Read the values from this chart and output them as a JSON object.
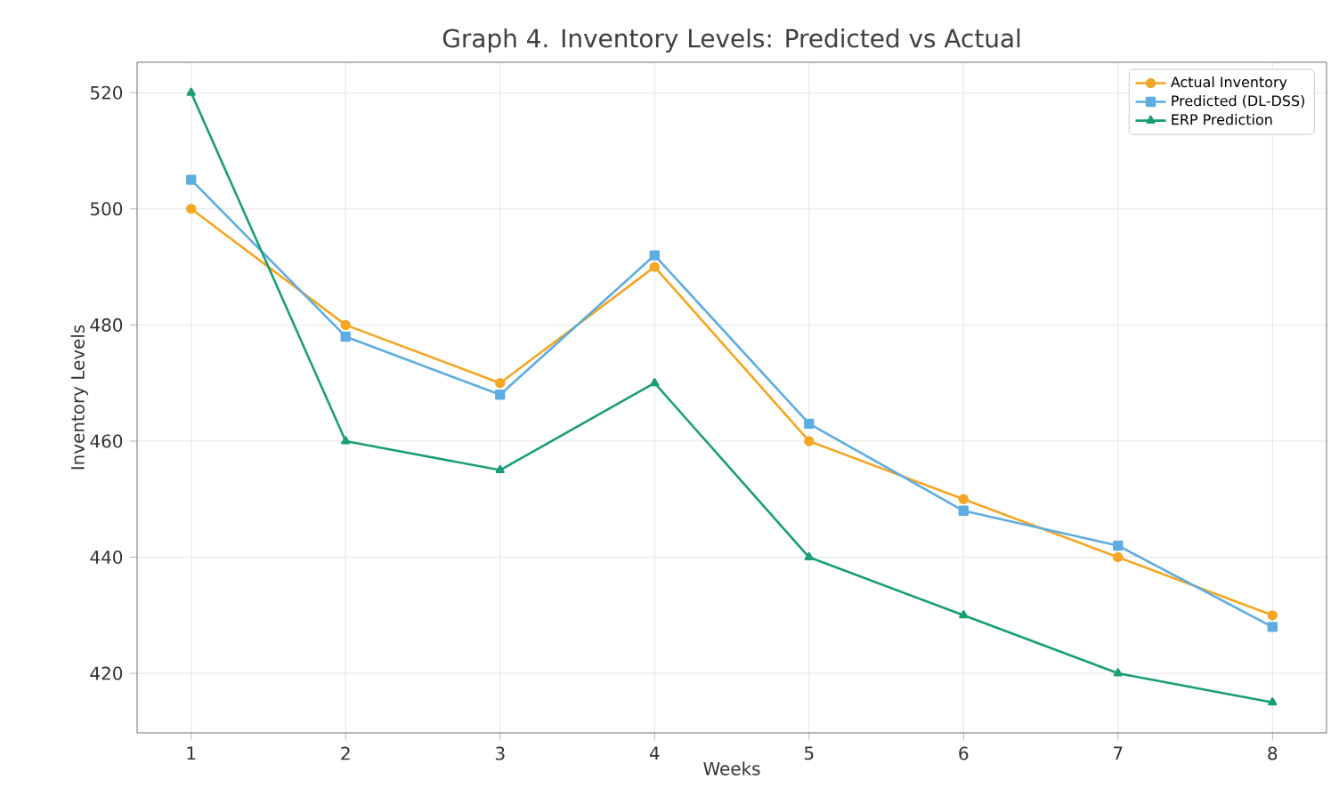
{
  "chart_data": {
    "type": "line",
    "title": "Graph 4. Inventory Levels: Predicted vs Actual",
    "xlabel": "Weeks",
    "ylabel": "Inventory Levels",
    "x": [
      1,
      2,
      3,
      4,
      5,
      6,
      7,
      8
    ],
    "series": [
      {
        "name": "Actual Inventory",
        "color": "#f5a623",
        "marker": "circle",
        "values": [
          500,
          480,
          470,
          490,
          460,
          450,
          440,
          430
        ]
      },
      {
        "name": "Predicted (DL-DSS)",
        "color": "#5dade2",
        "marker": "square",
        "values": [
          505,
          478,
          468,
          492,
          463,
          448,
          442,
          428
        ]
      },
      {
        "name": "ERP Prediction",
        "color": "#1a9e77",
        "marker": "triangle",
        "values": [
          520,
          460,
          455,
          470,
          440,
          430,
          420,
          415
        ]
      }
    ],
    "xlim": [
      0.65,
      8.35
    ],
    "ylim": [
      409.75,
      525.25
    ],
    "xticks": [
      1,
      2,
      3,
      4,
      5,
      6,
      7,
      8
    ],
    "yticks": [
      420,
      440,
      460,
      480,
      500,
      520
    ],
    "grid": true,
    "legend": "top right",
    "line_style": "solid"
  }
}
